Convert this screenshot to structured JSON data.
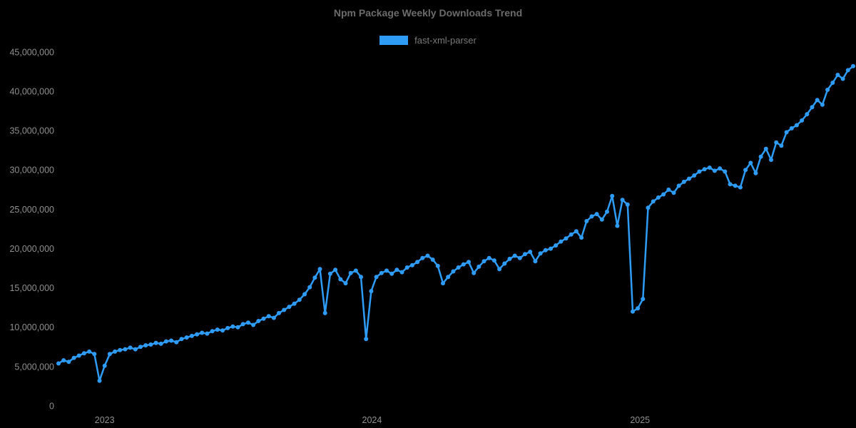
{
  "page": {
    "background": "#000000"
  },
  "chart_data": {
    "type": "line",
    "title": "Npm Package Weekly Downloads Trend",
    "legend_position": "top",
    "grid": false,
    "background": "#000000",
    "text_color_title": "#6b6b6b",
    "text_color_legend": "#7a7a7a",
    "text_color_ticks": "#8f8f8f",
    "xlabel": "",
    "ylabel": "",
    "ylim": [
      0,
      45000000
    ],
    "x_start_date": "2022-10-30",
    "interval_days": 7,
    "y_ticks": [
      {
        "value": 0,
        "label": "0"
      },
      {
        "value": 5000000,
        "label": "5,000,000"
      },
      {
        "value": 10000000,
        "label": "10,000,000"
      },
      {
        "value": 15000000,
        "label": "15,000,000"
      },
      {
        "value": 20000000,
        "label": "20,000,000"
      },
      {
        "value": 25000000,
        "label": "25,000,000"
      },
      {
        "value": 30000000,
        "label": "30,000,000"
      },
      {
        "value": 35000000,
        "label": "35,000,000"
      },
      {
        "value": 40000000,
        "label": "40,000,000"
      },
      {
        "value": 45000000,
        "label": "45,000,000"
      }
    ],
    "x_ticks": [
      {
        "date": "2023-01-01",
        "label": "2023"
      },
      {
        "date": "2024-01-01",
        "label": "2024"
      },
      {
        "date": "2025-01-01",
        "label": "2025"
      }
    ],
    "series": [
      {
        "name": "fast-xml-parser",
        "color": "#2e9cf4",
        "point_radius": 3,
        "line_width": 2.5,
        "values": [
          5400000,
          5800000,
          5600000,
          6100000,
          6400000,
          6700000,
          6900000,
          6600000,
          3200000,
          5100000,
          6600000,
          6900000,
          7100000,
          7200000,
          7400000,
          7200000,
          7500000,
          7700000,
          7800000,
          8000000,
          7900000,
          8200000,
          8300000,
          8100000,
          8500000,
          8700000,
          8900000,
          9100000,
          9300000,
          9200000,
          9500000,
          9700000,
          9600000,
          9900000,
          10100000,
          10000000,
          10400000,
          10600000,
          10300000,
          10800000,
          11100000,
          11400000,
          11200000,
          11800000,
          12200000,
          12600000,
          13000000,
          13500000,
          14200000,
          15100000,
          16300000,
          17400000,
          11800000,
          16800000,
          17300000,
          16100000,
          15600000,
          16900000,
          17200000,
          16400000,
          8500000,
          14600000,
          16400000,
          16900000,
          17200000,
          16800000,
          17300000,
          17000000,
          17600000,
          17900000,
          18300000,
          18800000,
          19100000,
          18600000,
          17800000,
          15600000,
          16400000,
          17100000,
          17600000,
          18000000,
          18300000,
          16900000,
          17700000,
          18400000,
          18800000,
          18500000,
          17400000,
          18100000,
          18700000,
          19100000,
          18800000,
          19300000,
          19600000,
          18400000,
          19400000,
          19800000,
          20000000,
          20400000,
          20900000,
          21300000,
          21800000,
          22200000,
          21400000,
          23500000,
          24100000,
          24400000,
          23700000,
          24700000,
          26700000,
          22900000,
          26200000,
          25600000,
          12000000,
          12400000,
          13600000,
          25200000,
          26000000,
          26500000,
          26900000,
          27500000,
          27100000,
          28000000,
          28500000,
          28900000,
          29300000,
          29800000,
          30100000,
          30300000,
          29900000,
          30200000,
          29800000,
          28200000,
          28000000,
          27800000,
          30000000,
          30900000,
          29600000,
          31700000,
          32700000,
          31300000,
          33500000,
          33100000,
          34800000,
          35300000,
          35700000,
          36300000,
          37100000,
          38000000,
          38900000,
          38300000,
          40200000,
          41100000,
          42100000,
          41600000,
          42700000,
          43200000
        ]
      }
    ]
  }
}
